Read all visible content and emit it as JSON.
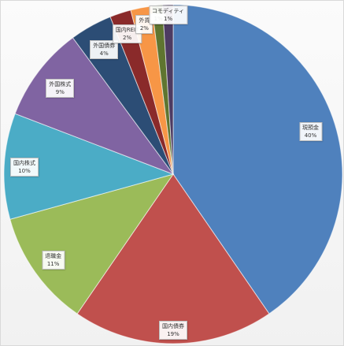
{
  "chart_data": {
    "type": "pie",
    "title": "",
    "slices": [
      {
        "label": "現預金",
        "value": 40,
        "value_label": "40%",
        "color": "#4f81bd"
      },
      {
        "label": "国内債券",
        "value": 19,
        "value_label": "19%",
        "color": "#c0504d"
      },
      {
        "label": "退職金",
        "value": 11,
        "value_label": "11%",
        "color": "#9bbb59"
      },
      {
        "label": "国内株式",
        "value": 10,
        "value_label": "10%",
        "color": "#4bacc6"
      },
      {
        "label": "外国株式",
        "value": 9,
        "value_label": "9%",
        "color": "#8064a2"
      },
      {
        "label": "外国債券",
        "value": 4,
        "value_label": "4%",
        "color": "#2c4d75"
      },
      {
        "label": "国内REIT",
        "value": 2,
        "value_label": "2%",
        "color": "#8a2a2a"
      },
      {
        "label": "外貨",
        "value": 2,
        "value_label": "2%",
        "color": "#f79646"
      },
      {
        "label": "",
        "value": 1,
        "value_label": "1%",
        "color": "#5f7530"
      },
      {
        "label": "コモディティ",
        "value": 1,
        "value_label": "1%",
        "color": "#4d3b62"
      }
    ],
    "start_angle_deg": 0,
    "direction": "clockwise",
    "legend": "none"
  }
}
